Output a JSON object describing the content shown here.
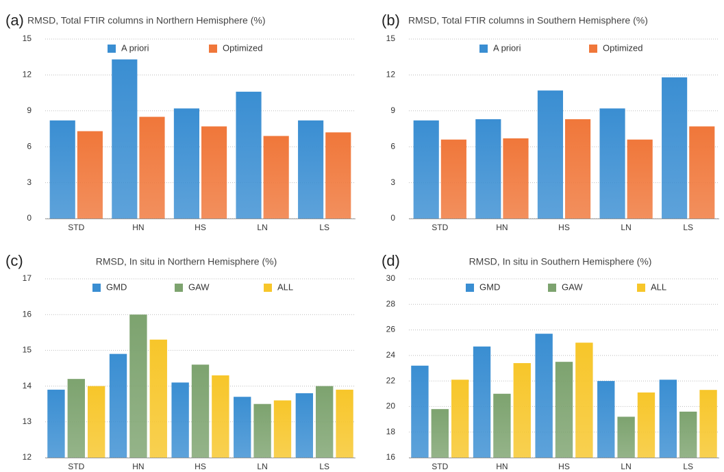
{
  "chart_data": [
    {
      "type": "bar",
      "label": "(a)",
      "title": "RMSD, Total FTIR columns in Northern Hemisphere (%)",
      "categories": [
        "STD",
        "HN",
        "HS",
        "LN",
        "LS"
      ],
      "series": [
        {
          "name": "A priori",
          "color": "#3a8ed2",
          "values": [
            8.2,
            13.3,
            9.2,
            10.6,
            8.2
          ]
        },
        {
          "name": "Optimized",
          "color": "#f0773a",
          "values": [
            7.3,
            8.5,
            7.7,
            6.9,
            7.2
          ]
        }
      ],
      "ylim": [
        0,
        15
      ],
      "yticks": [
        0,
        3,
        6,
        9,
        12,
        15
      ],
      "grid": true,
      "legend": "top"
    },
    {
      "type": "bar",
      "label": "(b)",
      "title": "RMSD, Total FTIR columns in Southern Hemisphere (%)",
      "categories": [
        "STD",
        "HN",
        "HS",
        "LN",
        "LS"
      ],
      "series": [
        {
          "name": "A priori",
          "color": "#3a8ed2",
          "values": [
            8.2,
            8.3,
            10.7,
            9.2,
            11.8
          ]
        },
        {
          "name": "Optimized",
          "color": "#f0773a",
          "values": [
            6.6,
            6.7,
            8.3,
            6.6,
            7.7
          ]
        }
      ],
      "ylim": [
        0,
        15
      ],
      "yticks": [
        0,
        3,
        6,
        9,
        12,
        15
      ],
      "grid": true,
      "legend": "top"
    },
    {
      "type": "bar",
      "label": "(c)",
      "title": "RMSD, In situ  in Northern Hemisphere (%)",
      "categories": [
        "STD",
        "HN",
        "HS",
        "LN",
        "LS"
      ],
      "series": [
        {
          "name": "GMD",
          "color": "#3a8ed2",
          "values": [
            13.9,
            14.9,
            14.1,
            13.7,
            13.8
          ]
        },
        {
          "name": "GAW",
          "color": "#7da36f",
          "values": [
            14.2,
            16.0,
            14.6,
            13.5,
            14.0
          ]
        },
        {
          "name": "ALL",
          "color": "#f7c62a",
          "values": [
            14.0,
            15.3,
            14.3,
            13.6,
            13.9
          ]
        }
      ],
      "ylim": [
        12,
        17
      ],
      "yticks": [
        12,
        13,
        14,
        15,
        16,
        17
      ],
      "grid": true,
      "legend": "top"
    },
    {
      "type": "bar",
      "label": "(d)",
      "title": "RMSD, In situ  in Southern Hemisphere (%)",
      "categories": [
        "STD",
        "HN",
        "HS",
        "LN",
        "LS"
      ],
      "series": [
        {
          "name": "GMD",
          "color": "#3a8ed2",
          "values": [
            23.2,
            24.7,
            25.7,
            22.0,
            22.1
          ]
        },
        {
          "name": "GAW",
          "color": "#7da36f",
          "values": [
            19.8,
            21.0,
            23.5,
            19.2,
            19.6
          ]
        },
        {
          "name": "ALL",
          "color": "#f7c62a",
          "values": [
            22.1,
            23.4,
            25.0,
            21.1,
            21.3
          ]
        }
      ],
      "ylim": [
        16,
        30
      ],
      "yticks": [
        16,
        18,
        20,
        22,
        24,
        26,
        28,
        30
      ],
      "grid": true,
      "legend": "top"
    }
  ]
}
